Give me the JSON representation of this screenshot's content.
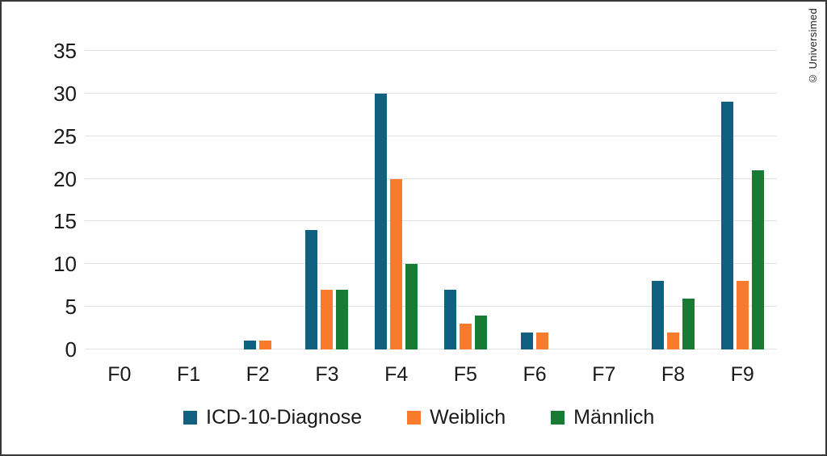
{
  "page": {
    "watermark": "© Universimed"
  },
  "chart_data": {
    "type": "bar",
    "categories": [
      "F0",
      "F1",
      "F2",
      "F3",
      "F4",
      "F5",
      "F6",
      "F7",
      "F8",
      "F9"
    ],
    "series": [
      {
        "name": "ICD-10-Diagnose",
        "color": "#10617f",
        "values": [
          0,
          0,
          1,
          14,
          30,
          7,
          2,
          0,
          8,
          29
        ]
      },
      {
        "name": "Weiblich",
        "color": "#f87b2d",
        "values": [
          0,
          0,
          1,
          7,
          20,
          3,
          2,
          0,
          2,
          8
        ]
      },
      {
        "name": "Männlich",
        "color": "#187b33",
        "values": [
          0,
          0,
          0,
          7,
          10,
          4,
          0,
          0,
          6,
          21
        ]
      }
    ],
    "ylim": [
      0,
      35
    ],
    "ytick_step": 5,
    "yticks": [
      0,
      5,
      10,
      15,
      20,
      25,
      30,
      35
    ],
    "grid": true,
    "legend_position": "bottom",
    "colors": {
      "grid": "#e0e0e0",
      "text": "#1a1a1a",
      "border": "#383838",
      "background": "#ffffff"
    }
  }
}
